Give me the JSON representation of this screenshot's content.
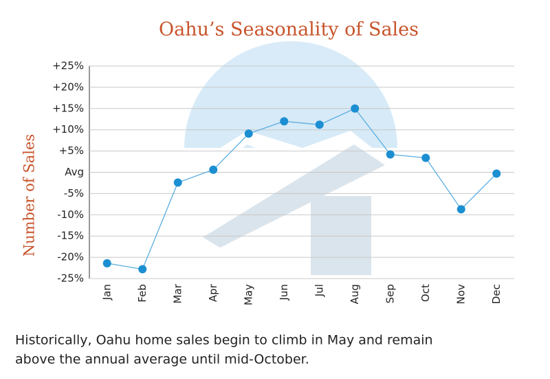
{
  "chart_data": {
    "type": "line",
    "title": "Oahu’s Seasonality of Sales",
    "y_label": "Number of Sales",
    "caption": [
      "Historically, Oahu home sales begin to climb in May and remain",
      "above the annual average until mid-October."
    ],
    "categories": [
      "Jan",
      "Feb",
      "Mar",
      "Apr",
      "May",
      "Jun",
      "Jul",
      "Aug",
      "Sep",
      "Oct",
      "Nov",
      "Dec"
    ],
    "values": [
      -21.4,
      -22.8,
      -2.4,
      0.6,
      9.1,
      12.0,
      11.2,
      15.0,
      4.2,
      3.4,
      -8.7,
      -0.3
    ],
    "color": "#1b8fd2",
    "line_color": "#5aaee0",
    "title_color": "#c8532a",
    "ylim": [
      -25,
      25
    ],
    "yticks": [
      {
        "value": 25,
        "label": "+25%"
      },
      {
        "value": 20,
        "label": "+20%"
      },
      {
        "value": 15,
        "label": "+15%"
      },
      {
        "value": 10,
        "label": "+10%"
      },
      {
        "value": 5,
        "label": "+5%"
      },
      {
        "value": 0,
        "label": "Avg"
      },
      {
        "value": -5,
        "label": "-5%"
      },
      {
        "value": -10,
        "label": "-10%"
      },
      {
        "value": -15,
        "label": "-15%"
      },
      {
        "value": -20,
        "label": "-20%"
      },
      {
        "value": -25,
        "label": "-25%"
      }
    ],
    "grid": true
  }
}
